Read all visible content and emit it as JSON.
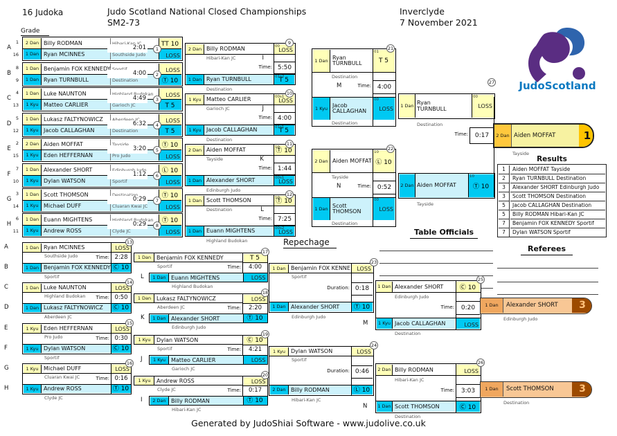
{
  "header": {
    "count": "16 Judoka",
    "title1": "Judo Scotland National Closed Championships",
    "title2": "SM2-73",
    "venue": "Inverclyde",
    "date": "7 November 2021"
  },
  "labels": {
    "grade": "Grade",
    "time": "Time:",
    "duration": "Duration:",
    "repechage": "Repechage",
    "officials": "Table Officials",
    "referees": "Referees",
    "results": "Results"
  },
  "logo": {
    "text": "JudoScotland"
  },
  "footer": {
    "text": "Generated by JudoShiai Software - www.judolive.co.uk"
  },
  "colors": {
    "winner_yellow": "#ffffb8",
    "cyan": "#00c9f2",
    "pale_cyan": "#cdf2fb",
    "gold": "#ffc400",
    "bronze": "#9c4a00"
  },
  "round1": [
    {
      "no": "1",
      "letter": "A",
      "seed_top": "1",
      "seed_bottom": "16",
      "time": "2:01",
      "top": {
        "grade": "2 Dan",
        "name": "Billy RODMAN",
        "club": "Hibari-Kan JC",
        "result": "TT 10",
        "win": true
      },
      "bottom": {
        "grade": "1 Dan",
        "name": "Ryan MCINNES",
        "club": "Southside Judo",
        "result": "LOSS",
        "win": false
      }
    },
    {
      "no": "2",
      "letter": "B",
      "seed_top": "8",
      "seed_bottom": "9",
      "time": "4:00",
      "top": {
        "grade": "1 Dan",
        "name": "Benjamin FOX KENNEDY",
        "club": "Sportif",
        "result": "LOSS",
        "win": false
      },
      "bottom": {
        "grade": "1 Dan",
        "name": "Ryan TURNBULL",
        "club": "Destination",
        "result": "Ⓣ 10",
        "win": true
      }
    },
    {
      "no": "3",
      "letter": "C",
      "seed_top": "4",
      "seed_bottom": "13",
      "time": "4:49",
      "top": {
        "grade": "1 Dan",
        "name": "Luke NAUNTON",
        "club": "Highland Budokan",
        "result": "LOSS",
        "win": false
      },
      "bottom": {
        "grade": "1 Kyu",
        "name": "Matteo CARLIER",
        "club": "Garioch JC",
        "result": "T 5",
        "win": true
      }
    },
    {
      "no": "4",
      "letter": "D",
      "seed_top": "5",
      "seed_bottom": "12",
      "time": "6:32",
      "top": {
        "grade": "1 Dan",
        "name": "Lukasz FALTYNOWICZ",
        "club": "Aberdeen JC",
        "result": "LOSS",
        "win": false
      },
      "bottom": {
        "grade": "1 Kyu",
        "name": "Jacob CALLAGHAN",
        "club": "Destination",
        "result": "T 5",
        "win": true
      }
    },
    {
      "no": "5",
      "letter": "E",
      "seed_top": "2",
      "seed_bottom": "15",
      "time": "3:20",
      "top": {
        "grade": "2 Dan",
        "name": "Aiden MOFFAT",
        "club": "Tayside",
        "result": "Ⓣ 10",
        "win": true
      },
      "bottom": {
        "grade": "1 Kyu",
        "name": "Eden HEFFERNAN",
        "club": "Pro Judo",
        "result": "LOSS",
        "win": false
      }
    },
    {
      "no": "6",
      "letter": "F",
      "seed_top": "7",
      "seed_bottom": "10",
      "time": "1:12",
      "top": {
        "grade": "1 Dan",
        "name": "Alexander SHORT",
        "club": "Edinburgh Judo",
        "result": "Ⓛ 10",
        "win": true
      },
      "bottom": {
        "grade": "1 Kyu",
        "name": "Dylan WATSON",
        "club": "Sportif",
        "result": "LOSS",
        "win": false
      }
    },
    {
      "no": "7",
      "letter": "G",
      "seed_top": "3",
      "seed_bottom": "14",
      "time": "0:29",
      "top": {
        "grade": "1 Dan",
        "name": "Scott THOMSON",
        "club": "Destination",
        "result": "Ⓣ 10",
        "win": true
      },
      "bottom": {
        "grade": "1 Kyu",
        "name": "Michael DUFF",
        "club": "Cluaran Kwai JC",
        "result": "LOSS",
        "win": false
      }
    },
    {
      "no": "8",
      "letter": "H",
      "seed_top": "6",
      "seed_bottom": "11",
      "time": "0:29",
      "top": {
        "grade": "1 Dan",
        "name": "Euann MIGHTENS",
        "club": "Highland Budokan",
        "result": "Ⓣ 10",
        "win": true
      },
      "bottom": {
        "grade": "1 Kyu",
        "name": "Andrew ROSS",
        "club": "Clyde JC",
        "result": "LOSS",
        "win": false
      }
    }
  ],
  "quarterfinals": [
    {
      "no": "9",
      "letter": "I",
      "time": "5:50",
      "top": {
        "grade": "2 Dan",
        "name": "Billy RODMAN",
        "club": "Hibari-Kan JC",
        "result": "LOSS",
        "tag": "00",
        "win": false
      },
      "bottom": {
        "grade": "1 Dan",
        "name": "Ryan TURNBULL",
        "club": "Destination",
        "result": "T 5",
        "tag": "01s2",
        "win": true
      }
    },
    {
      "no": "10",
      "letter": "J",
      "time": "4:00",
      "top": {
        "grade": "1 Kyu",
        "name": "Matteo CARLIER",
        "club": "Garioch JC",
        "result": "LOSS",
        "tag": "00s1",
        "win": false
      },
      "bottom": {
        "grade": "1 Kyu",
        "name": "Jacob CALLAGHAN",
        "club": "Destination",
        "result": "T 5",
        "tag": "01s1",
        "win": true
      }
    },
    {
      "no": "11",
      "letter": "K",
      "time": "1:44",
      "top": {
        "grade": "2 Dan",
        "name": "Aiden MOFFAT",
        "club": "Tayside",
        "result": "Ⓣ 10",
        "tag": "10",
        "win": true
      },
      "bottom": {
        "grade": "1 Dan",
        "name": "Alexander SHORT",
        "club": "Edinburgh Judo",
        "result": "LOSS",
        "tag": "00s1",
        "win": false
      }
    },
    {
      "no": "12",
      "letter": "L",
      "time": "7:25",
      "top": {
        "grade": "1 Dan",
        "name": "Scott THOMSON",
        "club": "Destination",
        "result": "Ⓣ 10",
        "tag": "10",
        "win": true
      },
      "bottom": {
        "grade": "1 Dan",
        "name": "Euann MIGHTENS",
        "club": "Highland Budokan",
        "result": "LOSS",
        "tag": "00s2",
        "win": false
      }
    }
  ],
  "semifinals": [
    {
      "no": "21",
      "letter": "M",
      "time": "4:00",
      "top": {
        "grade": "1 Dan",
        "name": "Ryan TURNBULL",
        "club": "Destination",
        "result": "T 5",
        "tag": "01",
        "win": true
      },
      "bottom": {
        "grade": "1 Kyu",
        "name": "Jacob CALLAGHAN",
        "club": "Destination",
        "result": "LOSS",
        "tag": "00",
        "win": false
      }
    },
    {
      "no": "22",
      "letter": "N",
      "time": "0:52",
      "top": {
        "grade": "2 Dan",
        "name": "Aiden MOFFAT",
        "club": "Tayside",
        "result": "Ⓛ 10",
        "tag": "10",
        "win": true
      },
      "bottom": {
        "grade": "1 Dan",
        "name": "Scott THOMSON",
        "club": "Destination",
        "result": "LOSS",
        "tag": "00",
        "win": false
      }
    }
  ],
  "final": {
    "no": "27",
    "time": "0:17",
    "top": {
      "grade": "1 Dan",
      "name": "Ryan TURNBULL",
      "club": "Destination",
      "result": "LOSS",
      "tag": "00",
      "win": false
    },
    "bottom": {
      "grade": "2 Dan",
      "name": "Aiden MOFFAT",
      "club": "Tayside",
      "result": "Ⓣ 10",
      "tag": "10",
      "win": true
    }
  },
  "champion": {
    "grade": "2 Dan",
    "name": "Aiden MOFFAT",
    "club": "Tayside",
    "place": "1"
  },
  "results": [
    {
      "rank": "1",
      "text": "Aiden MOFFAT Tayside"
    },
    {
      "rank": "2",
      "text": "Ryan TURNBULL Destination"
    },
    {
      "rank": "3",
      "text": "Alexander SHORT Edinburgh Judo"
    },
    {
      "rank": "3",
      "text": "Scott THOMSON Destination"
    },
    {
      "rank": "5",
      "text": "Jacob CALLAGHAN Destination"
    },
    {
      "rank": "5",
      "text": "Billy RODMAN Hibari-Kan JC"
    },
    {
      "rank": "7",
      "text": "Benjamin FOX KENNEDY Sportif"
    },
    {
      "rank": "7",
      "text": "Dylan WATSON Sportif"
    }
  ],
  "repechage_r1": [
    {
      "no": "13",
      "letter_top": "A",
      "letter_bottom": "B",
      "time": "2:28",
      "top": {
        "grade": "1 Dan",
        "name": "Ryan MCINNES",
        "club": "Southside Judo",
        "result": "LOSS",
        "win": false
      },
      "bottom": {
        "grade": "1 Dan",
        "name": "Benjamin FOX KENNEDY",
        "club": "Sportif",
        "result": "Ⓒ 10",
        "win": true
      }
    },
    {
      "no": "14",
      "letter_top": "C",
      "letter_bottom": "D",
      "time": "0:50",
      "top": {
        "grade": "1 Dan",
        "name": "Luke NAUNTON",
        "club": "Highland Budokan",
        "result": "LOSS",
        "win": false
      },
      "bottom": {
        "grade": "1 Dan",
        "name": "Lukasz FALTYNOWICZ",
        "club": "Aberdeen JC",
        "result": "Ⓒ 10",
        "win": true
      }
    },
    {
      "no": "15",
      "letter_top": "E",
      "letter_bottom": "F",
      "time": "0:30",
      "top": {
        "grade": "1 Kyu",
        "name": "Eden HEFFERNAN",
        "club": "Pro Judo",
        "result": "LOSS",
        "win": false
      },
      "bottom": {
        "grade": "1 Kyu",
        "name": "Dylan WATSON",
        "club": "Sportif",
        "result": "Ⓒ 10",
        "win": true
      }
    },
    {
      "no": "16",
      "letter_top": "G",
      "letter_bottom": "H",
      "time": "0:16",
      "top": {
        "grade": "1 Kyu",
        "name": "Michael DUFF",
        "club": "Cluaran Kwai JC",
        "result": "LOSS",
        "win": false
      },
      "bottom": {
        "grade": "1 Kyu",
        "name": "Andrew ROSS",
        "club": "Clyde JC",
        "result": "Ⓣ 10",
        "win": true
      }
    }
  ],
  "repechage_r2": [
    {
      "no": "17",
      "letter": "L",
      "time": "4:00",
      "top": {
        "grade": "1 Dan",
        "name": "Benjamin FOX KENNEDY",
        "club": "Sportif",
        "result": "T 5",
        "win": true
      },
      "bottom": {
        "grade": "1 Dan",
        "name": "Euann MIGHTENS",
        "club": "Highland Budokan",
        "result": "LOSS",
        "win": false
      }
    },
    {
      "no": "18",
      "letter": "K",
      "time": "2:20",
      "top": {
        "grade": "1 Dan",
        "name": "Lukasz FALTYNOWICZ",
        "club": "Aberdeen JC",
        "result": "LOSS",
        "win": false
      },
      "bottom": {
        "grade": "1 Dan",
        "name": "Alexander SHORT",
        "club": "Edinburgh Judo",
        "result": "Ⓣ 10",
        "win": true
      }
    },
    {
      "no": "19",
      "letter": "J",
      "time": "4:21",
      "top": {
        "grade": "1 Kyu",
        "name": "Dylan WATSON",
        "club": "Sportif",
        "result": "Ⓒ 10",
        "win": true
      },
      "bottom": {
        "grade": "1 Kyu",
        "name": "Matteo CARLIER",
        "club": "Garioch JC",
        "result": "LOSS",
        "win": false
      }
    },
    {
      "no": "20",
      "letter": "I",
      "time": "0:17",
      "top": {
        "grade": "1 Kyu",
        "name": "Andrew ROSS",
        "club": "Clyde JC",
        "result": "LOSS",
        "win": false
      },
      "bottom": {
        "grade": "2 Dan",
        "name": "Billy RODMAN",
        "club": "Hibari-Kan JC",
        "result": "Ⓣ 10",
        "win": true
      }
    }
  ],
  "repechage_r3": [
    {
      "no": "23",
      "time": "0:18",
      "top": {
        "grade": "1 Dan",
        "name": "Benjamin FOX KENNEDY",
        "club": "Sportif",
        "result": "LOSS",
        "win": false
      },
      "bottom": {
        "grade": "1 Dan",
        "name": "Alexander SHORT",
        "club": "Edinburgh Judo",
        "result": "Ⓣ 10",
        "win": true
      }
    },
    {
      "no": "24",
      "time": "0:46",
      "top": {
        "grade": "1 Kyu",
        "name": "Dylan WATSON",
        "club": "Sportif",
        "result": "LOSS",
        "win": false
      },
      "bottom": {
        "grade": "2 Dan",
        "name": "Billy RODMAN",
        "club": "Hibari-Kan JC",
        "result": "Ⓛ 10",
        "win": true
      }
    }
  ],
  "bronze": [
    {
      "no": "25",
      "letter": "M",
      "time": "0:20",
      "top": {
        "grade": "1 Dan",
        "name": "Alexander SHORT",
        "club": "Edinburgh Judo",
        "result": "Ⓒ 10",
        "win": true
      },
      "bottom": {
        "grade": "1 Kyu",
        "name": "Jacob CALLAGHAN",
        "club": "Destination",
        "result": "LOSS",
        "win": false
      }
    },
    {
      "no": "26",
      "letter": "N",
      "time": "3:03",
      "top": {
        "grade": "2 Dan",
        "name": "Billy RODMAN",
        "club": "Hibari-Kan JC",
        "result": "LOSS",
        "win": false
      },
      "bottom": {
        "grade": "1 Dan",
        "name": "Scott THOMSON",
        "club": "Destination",
        "result": "Ⓒ 10",
        "win": true
      }
    }
  ],
  "third_place": [
    {
      "grade": "1 Dan",
      "name": "Alexander SHORT",
      "club": "Edinburgh Judo",
      "place": "3"
    },
    {
      "grade": "1 Dan",
      "name": "Scott THOMSON",
      "club": "Destination",
      "place": "3"
    }
  ]
}
